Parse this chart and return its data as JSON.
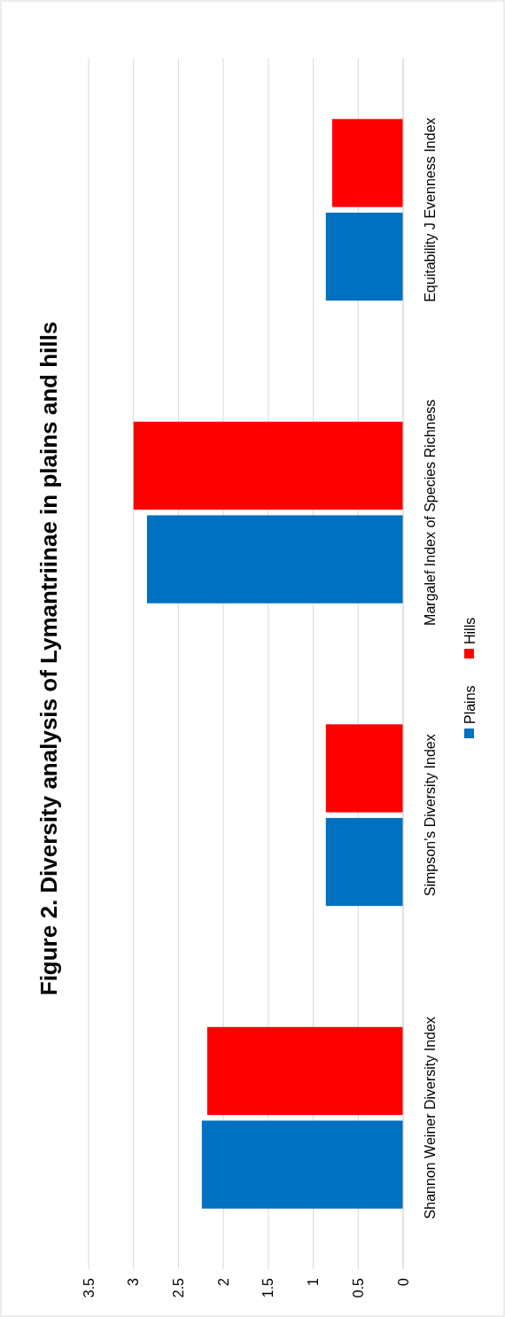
{
  "chart_data": {
    "type": "bar",
    "orientation": "horizontal",
    "title": "Figure 2. Diversity analysis of Lymantriinae in plains and hills",
    "categories": [
      "Equitability J Evenness Index",
      "Margalef Index of Species Richness",
      "Simpson’s Diversity Index",
      "Shannon Weiner Diversity Index"
    ],
    "series": [
      {
        "name": "Plains",
        "color": "#0070c0",
        "values": [
          0.86,
          2.85,
          0.86,
          2.24
        ]
      },
      {
        "name": "Hills",
        "color": "#ff0000",
        "values": [
          0.79,
          3.0,
          0.86,
          2.18
        ]
      }
    ],
    "xlim": [
      3.5,
      0
    ],
    "xticks": [
      0,
      0.5,
      1,
      1.5,
      2,
      2.5,
      3,
      3.5
    ],
    "grid": "x",
    "legend": "right"
  }
}
